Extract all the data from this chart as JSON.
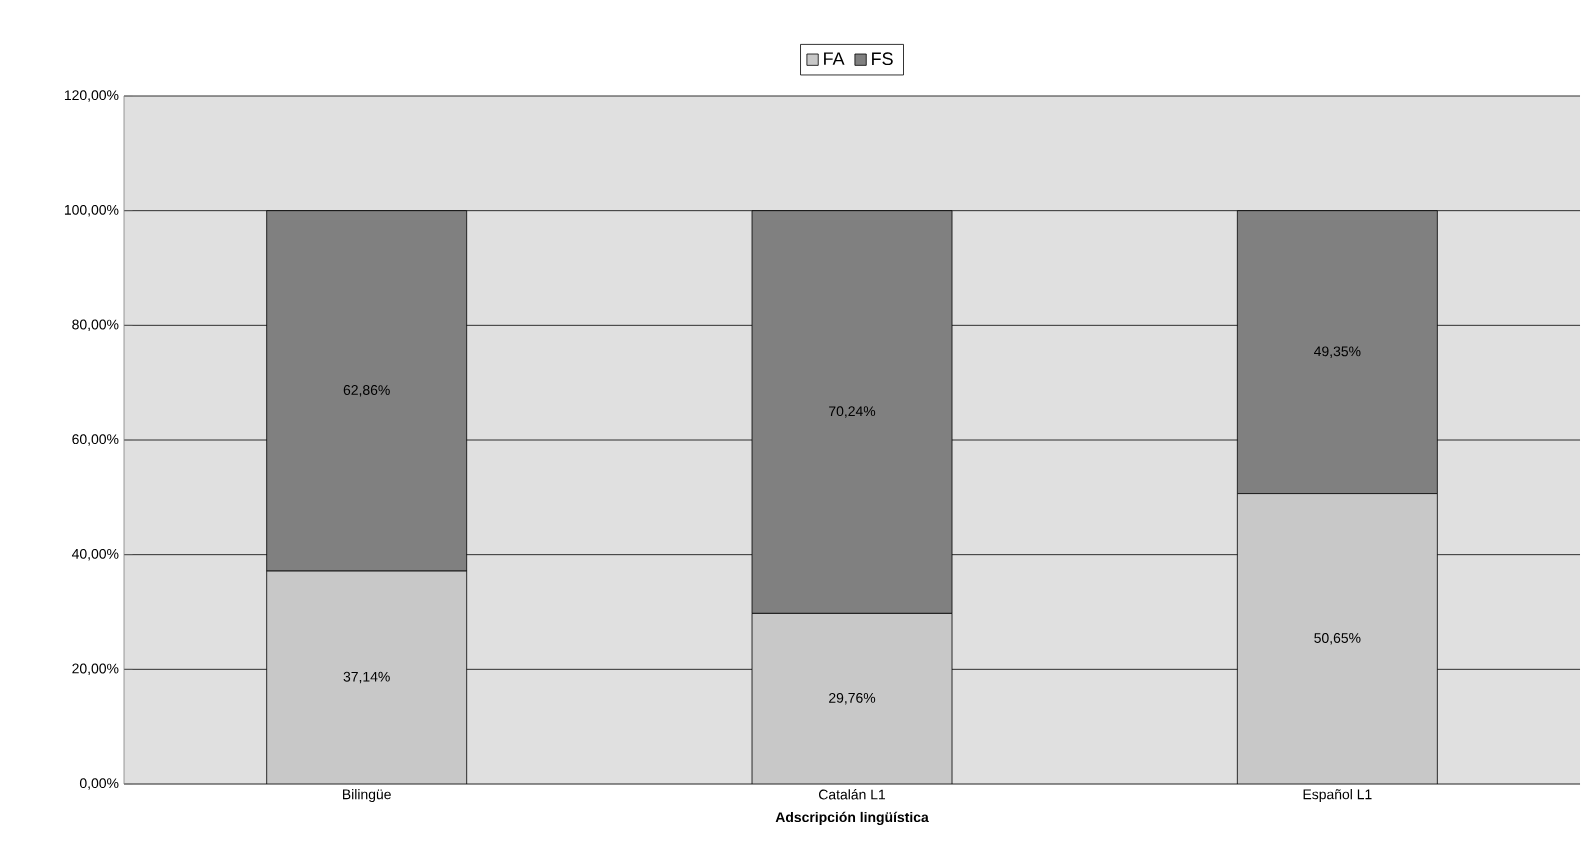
{
  "chart_data": {
    "type": "bar",
    "stacked": true,
    "xlabel": "Adscripción lingüística",
    "categories": [
      "Bilingüe",
      "Catalán L1",
      "Español L1"
    ],
    "series": [
      {
        "name": "FA",
        "color": "#c8c8c8",
        "values": [
          37.14,
          29.76,
          50.65
        ],
        "value_labels": [
          "37,14%",
          "29,76%",
          "50,65%"
        ]
      },
      {
        "name": "FS",
        "color": "#808080",
        "values": [
          62.86,
          70.24,
          49.35
        ],
        "value_labels": [
          "62,86%",
          "70,24%",
          "49,35%"
        ]
      }
    ],
    "ylim": [
      0,
      120
    ],
    "yticks": [
      {
        "value": 0,
        "label": "0,00%"
      },
      {
        "value": 20,
        "label": "20,00%"
      },
      {
        "value": 40,
        "label": "40,00%"
      },
      {
        "value": 60,
        "label": "60,00%"
      },
      {
        "value": 80,
        "label": "80,00%"
      },
      {
        "value": 100,
        "label": "100,00%"
      },
      {
        "value": 120,
        "label": "120,00%"
      }
    ],
    "grid": "y",
    "legend": "top"
  }
}
